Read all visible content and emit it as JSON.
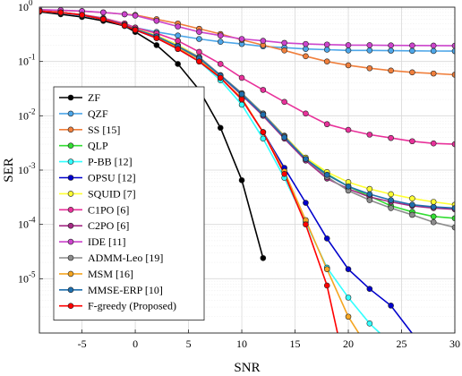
{
  "chart_data": {
    "type": "line",
    "title": "",
    "xlabel": "SNR",
    "ylabel": "SER",
    "xlim": [
      -9,
      30
    ],
    "ylim": [
      1e-06,
      1
    ],
    "yscale": "log",
    "grid": true,
    "legend_position": "left",
    "xticks": [
      -5,
      0,
      5,
      10,
      15,
      20,
      25,
      30
    ],
    "xtick_labels": [
      "-5",
      "0",
      "5",
      "10",
      "15",
      "20",
      "25",
      "30"
    ],
    "yticks": [
      1,
      0.1,
      0.01,
      0.001,
      0.0001,
      1e-05
    ],
    "ytick_labels": [
      {
        "base": "10",
        "exp": "0"
      },
      {
        "base": "10",
        "exp": "-1"
      },
      {
        "base": "10",
        "exp": "-2"
      },
      {
        "base": "10",
        "exp": "-3"
      },
      {
        "base": "10",
        "exp": "-4"
      },
      {
        "base": "10",
        "exp": "-5"
      }
    ],
    "series": [
      {
        "name": "ZF",
        "color": "#000000",
        "points": [
          [
            -9,
            0.82
          ],
          [
            -7,
            0.74
          ],
          [
            -5,
            0.66
          ],
          [
            -3,
            0.56
          ],
          [
            -1,
            0.45
          ],
          [
            0,
            0.35
          ],
          [
            2,
            0.2
          ],
          [
            4,
            0.09
          ],
          [
            6,
            0.03
          ],
          [
            8,
            0.006
          ],
          [
            10,
            0.00065
          ],
          [
            12,
            2.4e-05
          ]
        ]
      },
      {
        "name": "QZF",
        "color": "#4da6e8",
        "points": [
          [
            -9,
            0.85
          ],
          [
            -7,
            0.78
          ],
          [
            -5,
            0.7
          ],
          [
            -3,
            0.6
          ],
          [
            -1,
            0.5
          ],
          [
            0,
            0.42
          ],
          [
            2,
            0.35
          ],
          [
            4,
            0.3
          ],
          [
            6,
            0.26
          ],
          [
            8,
            0.23
          ],
          [
            10,
            0.21
          ],
          [
            12,
            0.19
          ],
          [
            14,
            0.18
          ],
          [
            16,
            0.17
          ],
          [
            18,
            0.165
          ],
          [
            20,
            0.16
          ],
          [
            22,
            0.16
          ],
          [
            24,
            0.158
          ],
          [
            26,
            0.157
          ],
          [
            28,
            0.156
          ],
          [
            30,
            0.155
          ]
        ]
      },
      {
        "name": "SS [15]",
        "color": "#f07f3c",
        "points": [
          [
            -9,
            0.9
          ],
          [
            -7,
            0.87
          ],
          [
            -5,
            0.84
          ],
          [
            -3,
            0.8
          ],
          [
            -1,
            0.74
          ],
          [
            0,
            0.72
          ],
          [
            2,
            0.6
          ],
          [
            4,
            0.5
          ],
          [
            6,
            0.4
          ],
          [
            8,
            0.32
          ],
          [
            10,
            0.25
          ],
          [
            12,
            0.2
          ],
          [
            14,
            0.16
          ],
          [
            16,
            0.125
          ],
          [
            18,
            0.1
          ],
          [
            20,
            0.085
          ],
          [
            22,
            0.075
          ],
          [
            24,
            0.068
          ],
          [
            26,
            0.063
          ],
          [
            28,
            0.06
          ],
          [
            30,
            0.057
          ]
        ]
      },
      {
        "name": "QLP",
        "color": "#33dd33",
        "points": [
          [
            -9,
            0.85
          ],
          [
            -7,
            0.8
          ],
          [
            -5,
            0.72
          ],
          [
            -3,
            0.62
          ],
          [
            -1,
            0.48
          ],
          [
            0,
            0.4
          ],
          [
            2,
            0.3
          ],
          [
            4,
            0.2
          ],
          [
            6,
            0.12
          ],
          [
            8,
            0.055
          ],
          [
            10,
            0.026
          ],
          [
            12,
            0.011
          ],
          [
            14,
            0.0042
          ],
          [
            16,
            0.0016
          ],
          [
            18,
            0.00085
          ],
          [
            20,
            0.0005
          ],
          [
            22,
            0.00033
          ],
          [
            24,
            0.00022
          ],
          [
            26,
            0.00017
          ],
          [
            28,
            0.00014
          ],
          [
            30,
            0.00013
          ]
        ]
      },
      {
        "name": "P-BB [12]",
        "color": "#33ffff",
        "points": [
          [
            -9,
            0.85
          ],
          [
            -7,
            0.8
          ],
          [
            -5,
            0.72
          ],
          [
            -3,
            0.6
          ],
          [
            -1,
            0.46
          ],
          [
            0,
            0.38
          ],
          [
            2,
            0.27
          ],
          [
            4,
            0.17
          ],
          [
            6,
            0.1
          ],
          [
            8,
            0.045
          ],
          [
            10,
            0.016
          ],
          [
            12,
            0.0038
          ],
          [
            14,
            0.00072
          ],
          [
            16,
            0.00011
          ],
          [
            18,
            1.6e-05
          ],
          [
            20,
            4.5e-06
          ],
          [
            22,
            1.5e-06
          ],
          [
            23,
            9.8e-07
          ]
        ]
      },
      {
        "name": "OPSU [12]",
        "color": "#0000cc",
        "points": [
          [
            -9,
            0.85
          ],
          [
            -7,
            0.8
          ],
          [
            -5,
            0.72
          ],
          [
            -3,
            0.6
          ],
          [
            -1,
            0.46
          ],
          [
            0,
            0.38
          ],
          [
            2,
            0.27
          ],
          [
            4,
            0.17
          ],
          [
            6,
            0.1
          ],
          [
            8,
            0.05
          ],
          [
            10,
            0.02
          ],
          [
            12,
            0.005
          ],
          [
            14,
            0.0011
          ],
          [
            16,
            0.00025
          ],
          [
            18,
            5.5e-05
          ],
          [
            20,
            1.5e-05
          ],
          [
            22,
            6.5e-06
          ],
          [
            24,
            3.2e-06
          ],
          [
            26,
            9.8e-07
          ]
        ]
      },
      {
        "name": "SQUID [7]",
        "color": "#ffff33",
        "points": [
          [
            -9,
            0.85
          ],
          [
            -7,
            0.8
          ],
          [
            -5,
            0.72
          ],
          [
            -3,
            0.62
          ],
          [
            -1,
            0.48
          ],
          [
            0,
            0.4
          ],
          [
            2,
            0.3
          ],
          [
            4,
            0.2
          ],
          [
            6,
            0.12
          ],
          [
            8,
            0.055
          ],
          [
            10,
            0.026
          ],
          [
            12,
            0.011
          ],
          [
            14,
            0.0043
          ],
          [
            16,
            0.0017
          ],
          [
            18,
            0.00092
          ],
          [
            20,
            0.0006
          ],
          [
            22,
            0.00045
          ],
          [
            24,
            0.00036
          ],
          [
            26,
            0.0003
          ],
          [
            28,
            0.00026
          ],
          [
            30,
            0.00023
          ]
        ]
      },
      {
        "name": "C1PO [6]",
        "color": "#e8319a",
        "points": [
          [
            -9,
            0.85
          ],
          [
            -7,
            0.8
          ],
          [
            -5,
            0.73
          ],
          [
            -3,
            0.63
          ],
          [
            -1,
            0.5
          ],
          [
            0,
            0.42
          ],
          [
            2,
            0.33
          ],
          [
            4,
            0.24
          ],
          [
            6,
            0.15
          ],
          [
            8,
            0.09
          ],
          [
            10,
            0.05
          ],
          [
            12,
            0.03
          ],
          [
            14,
            0.018
          ],
          [
            16,
            0.011
          ],
          [
            18,
            0.007
          ],
          [
            20,
            0.0055
          ],
          [
            22,
            0.0045
          ],
          [
            24,
            0.0039
          ],
          [
            26,
            0.0034
          ],
          [
            28,
            0.0031
          ],
          [
            30,
            0.003
          ]
        ]
      },
      {
        "name": "C2PO [6]",
        "color": "#a52a85",
        "points": [
          [
            -9,
            0.85
          ],
          [
            -7,
            0.8
          ],
          [
            -5,
            0.72
          ],
          [
            -3,
            0.6
          ],
          [
            -1,
            0.46
          ],
          [
            0,
            0.39
          ],
          [
            2,
            0.28
          ],
          [
            4,
            0.19
          ],
          [
            6,
            0.12
          ],
          [
            8,
            0.055
          ],
          [
            10,
            0.024
          ],
          [
            12,
            0.01
          ],
          [
            14,
            0.0038
          ],
          [
            16,
            0.0015
          ],
          [
            18,
            0.0007
          ],
          [
            20,
            0.00045
          ],
          [
            22,
            0.00032
          ],
          [
            24,
            0.00026
          ],
          [
            26,
            0.00022
          ],
          [
            28,
            0.0002
          ],
          [
            30,
            0.00019
          ]
        ]
      },
      {
        "name": "IDE [11]",
        "color": "#cc44cc",
        "points": [
          [
            -9,
            0.9
          ],
          [
            -7,
            0.88
          ],
          [
            -5,
            0.85
          ],
          [
            -3,
            0.8
          ],
          [
            -1,
            0.74
          ],
          [
            0,
            0.7
          ],
          [
            2,
            0.56
          ],
          [
            4,
            0.44
          ],
          [
            6,
            0.35
          ],
          [
            8,
            0.3
          ],
          [
            10,
            0.26
          ],
          [
            12,
            0.24
          ],
          [
            14,
            0.22
          ],
          [
            16,
            0.21
          ],
          [
            18,
            0.205
          ],
          [
            20,
            0.2
          ],
          [
            22,
            0.2
          ],
          [
            24,
            0.198
          ],
          [
            26,
            0.197
          ],
          [
            28,
            0.196
          ],
          [
            30,
            0.195
          ]
        ]
      },
      {
        "name": "ADMM-Leo [19]",
        "color": "#8c8c8c",
        "points": [
          [
            -9,
            0.85
          ],
          [
            -7,
            0.8
          ],
          [
            -5,
            0.72
          ],
          [
            -3,
            0.61
          ],
          [
            -1,
            0.47
          ],
          [
            0,
            0.39
          ],
          [
            2,
            0.29
          ],
          [
            4,
            0.19
          ],
          [
            6,
            0.12
          ],
          [
            8,
            0.056
          ],
          [
            10,
            0.026
          ],
          [
            12,
            0.011
          ],
          [
            14,
            0.0042
          ],
          [
            16,
            0.0016
          ],
          [
            18,
            0.00075
          ],
          [
            20,
            0.00042
          ],
          [
            22,
            0.00028
          ],
          [
            24,
            0.0002
          ],
          [
            26,
            0.00015
          ],
          [
            28,
            0.00011
          ],
          [
            30,
            8.8e-05
          ]
        ]
      },
      {
        "name": "MSM [16]",
        "color": "#f5a623",
        "points": [
          [
            -9,
            0.85
          ],
          [
            -7,
            0.8
          ],
          [
            -5,
            0.72
          ],
          [
            -3,
            0.61
          ],
          [
            -1,
            0.47
          ],
          [
            0,
            0.39
          ],
          [
            2,
            0.28
          ],
          [
            4,
            0.18
          ],
          [
            6,
            0.11
          ],
          [
            8,
            0.05
          ],
          [
            10,
            0.021
          ],
          [
            12,
            0.005
          ],
          [
            14,
            0.00095
          ],
          [
            16,
            0.00012
          ],
          [
            18,
            1.5e-05
          ],
          [
            20,
            2e-06
          ],
          [
            21,
            9.8e-07
          ]
        ]
      },
      {
        "name": "MMSE-ERP [10]",
        "color": "#1f6fae",
        "points": [
          [
            -9,
            0.85
          ],
          [
            -7,
            0.8
          ],
          [
            -5,
            0.72
          ],
          [
            -3,
            0.61
          ],
          [
            -1,
            0.47
          ],
          [
            0,
            0.39
          ],
          [
            2,
            0.29
          ],
          [
            4,
            0.19
          ],
          [
            6,
            0.115
          ],
          [
            8,
            0.055
          ],
          [
            10,
            0.025
          ],
          [
            12,
            0.0105
          ],
          [
            14,
            0.004
          ],
          [
            16,
            0.0016
          ],
          [
            18,
            0.00082
          ],
          [
            20,
            0.0005
          ],
          [
            22,
            0.00036
          ],
          [
            24,
            0.00028
          ],
          [
            26,
            0.00023
          ],
          [
            28,
            0.00021
          ],
          [
            30,
            0.0002
          ]
        ]
      },
      {
        "name": "F-greedy (Proposed)",
        "color": "#ff0000",
        "points": [
          [
            -9,
            0.85
          ],
          [
            -7,
            0.8
          ],
          [
            -5,
            0.72
          ],
          [
            -3,
            0.6
          ],
          [
            -1,
            0.46
          ],
          [
            0,
            0.38
          ],
          [
            2,
            0.27
          ],
          [
            4,
            0.17
          ],
          [
            6,
            0.1
          ],
          [
            8,
            0.05
          ],
          [
            10,
            0.02
          ],
          [
            12,
            0.005
          ],
          [
            14,
            0.00085
          ],
          [
            16,
            0.0001
          ],
          [
            18,
            7.5e-06
          ],
          [
            19,
            9.8e-07
          ]
        ]
      }
    ]
  }
}
